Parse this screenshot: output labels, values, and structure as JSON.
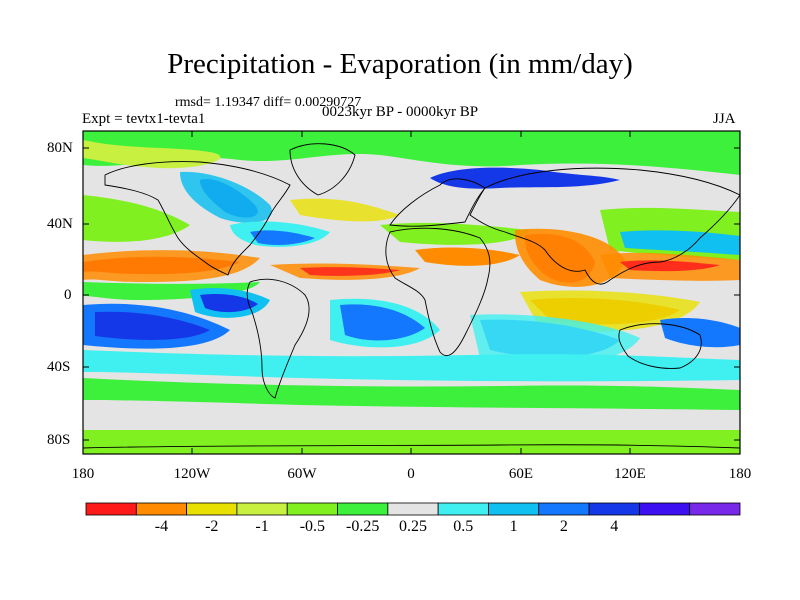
{
  "title": "Precipitation - Evaporation (in mm/day)",
  "stats": "rmsd= 1.19347 diff= 0.00290727",
  "expt_label": "Expt = tevtx1-tevta1",
  "period": "0023kyr BP - 0000kyr BP",
  "season": "JJA",
  "map": {
    "lat_ticks": [
      "80N",
      "40N",
      "0",
      "40S",
      "80S"
    ],
    "lon_ticks": [
      "180",
      "120W",
      "60W",
      "0",
      "60E",
      "120E",
      "180"
    ]
  },
  "colorbar": {
    "colors": [
      "#ff1a1a",
      "#ff8c00",
      "#e8e000",
      "#c8f040",
      "#80f020",
      "#3cf03c",
      "#e4e4e4",
      "#40f0f0",
      "#10c0f0",
      "#1478ff",
      "#1438e8",
      "#3c10f0",
      "#7828e8"
    ],
    "labels": [
      "-4",
      "-2",
      "-1",
      "-0.5",
      "-0.25",
      "0.25",
      "0.5",
      "1",
      "2",
      "4"
    ]
  }
}
